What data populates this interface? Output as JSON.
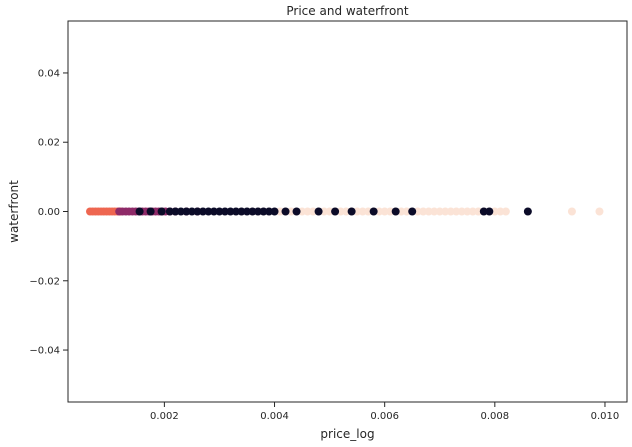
{
  "chart_data": {
    "type": "scatter",
    "title": "Price and waterfront",
    "xlabel": "price_log",
    "ylabel": "waterfront",
    "xlim": [
      0.00025,
      0.0104
    ],
    "ylim": [
      -0.055,
      0.055
    ],
    "xticks": [
      0.002,
      0.004,
      0.006,
      0.008,
      0.01
    ],
    "xtick_labels": [
      "0.002",
      "0.004",
      "0.006",
      "0.008",
      "0.010"
    ],
    "yticks": [
      0.04,
      0.02,
      0.0,
      -0.02,
      -0.04
    ],
    "ytick_labels": [
      "0.04",
      "0.02",
      "0.00",
      "−0.02",
      "−0.04"
    ],
    "grid": false,
    "colors": {
      "cluster_orange": "#ee6650",
      "cluster_magenta": "#8e2a68",
      "cluster_dark": "#0b0b28",
      "cluster_cream": "#fbe3d6"
    },
    "series": [
      {
        "color": "cluster_orange",
        "x": [
          0.00065,
          0.0007,
          0.00075,
          0.0008,
          0.00085,
          0.0009,
          0.00095,
          0.001,
          0.00105,
          0.0011,
          0.00115,
          0.0012
        ],
        "y": [
          0,
          0,
          0,
          0,
          0,
          0,
          0,
          0,
          0,
          0,
          0,
          0
        ]
      },
      {
        "color": "cluster_magenta",
        "x": [
          0.00118,
          0.00124,
          0.0013,
          0.00136,
          0.00142,
          0.00148,
          0.00154,
          0.0016,
          0.00166,
          0.00172,
          0.00178,
          0.00184,
          0.0019,
          0.00196,
          0.00202,
          0.0021,
          0.0022,
          0.0024,
          0.0026
        ],
        "y": [
          0,
          0,
          0,
          0,
          0,
          0,
          0,
          0,
          0,
          0,
          0,
          0,
          0,
          0,
          0,
          0,
          0,
          0,
          0
        ]
      },
      {
        "color": "cluster_cream",
        "x": [
          0.0034,
          0.0036,
          0.0037,
          0.0038,
          0.0039,
          0.0041,
          0.0042,
          0.0043,
          0.0044,
          0.0045,
          0.0046,
          0.0047,
          0.0048,
          0.0049,
          0.005,
          0.0051,
          0.0052,
          0.0053,
          0.0054,
          0.0055,
          0.0056,
          0.0057,
          0.0058,
          0.0059,
          0.006,
          0.0061,
          0.0062,
          0.0063,
          0.0064,
          0.0066,
          0.0067,
          0.0068,
          0.0069,
          0.007,
          0.0071,
          0.0072,
          0.0073,
          0.0074,
          0.0075,
          0.0076,
          0.0077,
          0.0078,
          0.0079,
          0.008,
          0.0081,
          0.0082,
          0.0094,
          0.0099
        ],
        "y": [
          0,
          0,
          0,
          0,
          0,
          0,
          0,
          0,
          0,
          0,
          0,
          0,
          0,
          0,
          0,
          0,
          0,
          0,
          0,
          0,
          0,
          0,
          0,
          0,
          0,
          0,
          0,
          0,
          0,
          0,
          0,
          0,
          0,
          0,
          0,
          0,
          0,
          0,
          0,
          0,
          0,
          0,
          0,
          0,
          0,
          0,
          0,
          0
        ]
      },
      {
        "color": "cluster_dark",
        "x": [
          0.00155,
          0.00175,
          0.00195,
          0.0021,
          0.0022,
          0.0023,
          0.0024,
          0.0025,
          0.0026,
          0.0027,
          0.0028,
          0.0029,
          0.003,
          0.0031,
          0.0032,
          0.0033,
          0.0034,
          0.0035,
          0.0036,
          0.0037,
          0.0038,
          0.0039,
          0.004,
          0.0042,
          0.0044,
          0.0048,
          0.0051,
          0.0054,
          0.0058,
          0.0062,
          0.0065,
          0.0078,
          0.0079,
          0.0086
        ],
        "y": [
          0,
          0,
          0,
          0,
          0,
          0,
          0,
          0,
          0,
          0,
          0,
          0,
          0,
          0,
          0,
          0,
          0,
          0,
          0,
          0,
          0,
          0,
          0,
          0,
          0,
          0,
          0,
          0,
          0,
          0,
          0,
          0,
          0,
          0
        ]
      }
    ]
  }
}
